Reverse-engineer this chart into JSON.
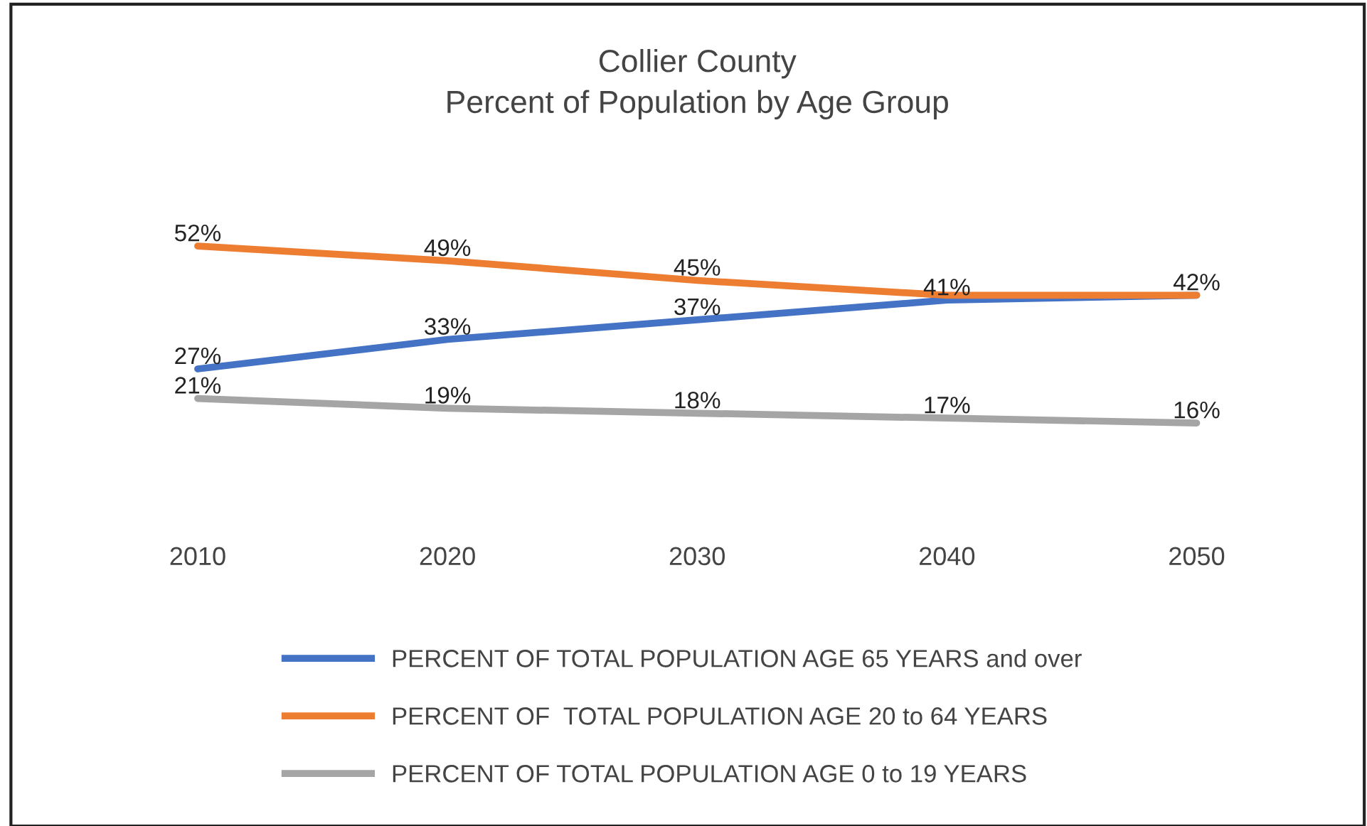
{
  "chart_data": {
    "type": "line",
    "title": "Collier County\nPercent of Population by Age Group",
    "categories": [
      "2010",
      "2020",
      "2030",
      "2040",
      "2050"
    ],
    "legend": "bottom",
    "grid": false,
    "marker": "none",
    "series": [
      {
        "name": "PERCENT OF TOTAL POPULATION AGE 65 YEARS and over",
        "color": "#4472c4",
        "values": [
          27,
          33,
          37,
          41,
          42
        ],
        "value_labels": [
          "27%",
          "33%",
          "37%",
          "41%",
          null
        ]
      },
      {
        "name": "PERCENT OF  TOTAL POPULATION AGE 20 to 64 YEARS",
        "color": "#ed7d31",
        "values": [
          52,
          49,
          45,
          42,
          42
        ],
        "value_labels": [
          "52%",
          "49%",
          "45%",
          null,
          "42%"
        ]
      },
      {
        "name": "PERCENT OF TOTAL POPULATION AGE 0 to 19 YEARS",
        "color": "#a5a5a5",
        "values": [
          21,
          19,
          18,
          17,
          16
        ],
        "value_labels": [
          "21%",
          "19%",
          "18%",
          "17%",
          "16%"
        ]
      }
    ]
  }
}
